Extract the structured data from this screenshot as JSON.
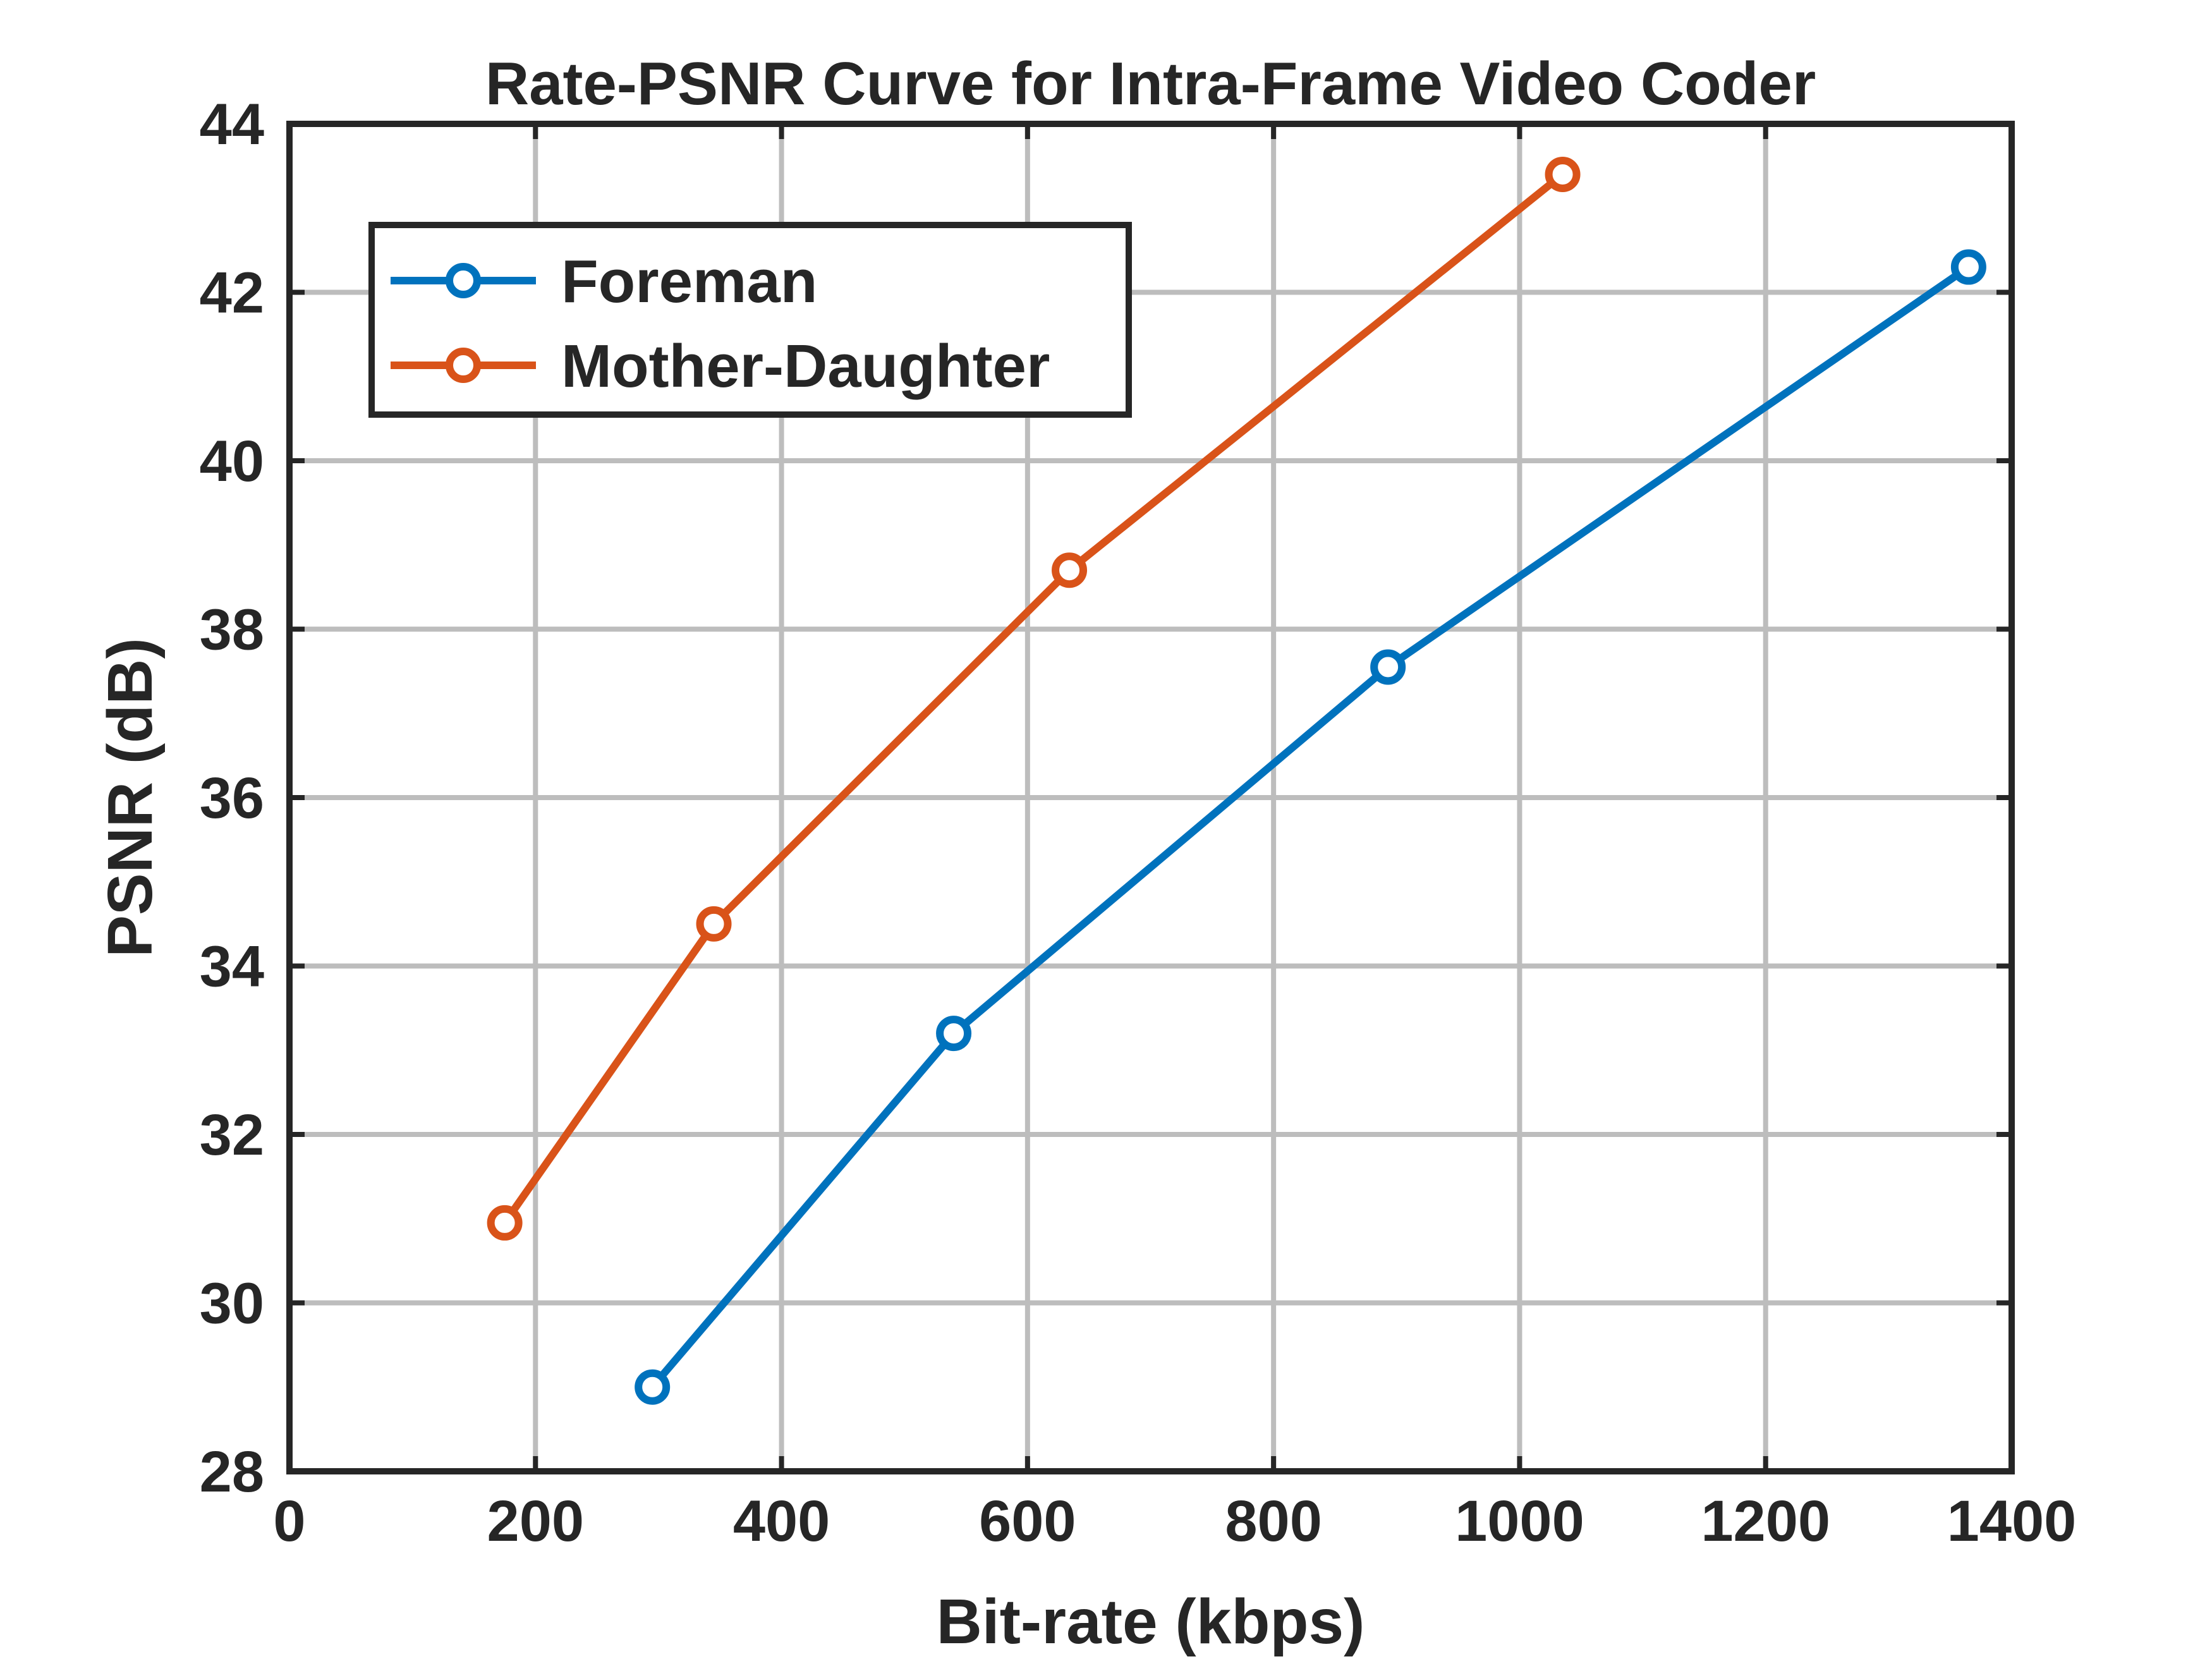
{
  "chart_data": {
    "type": "line",
    "title": "Rate-PSNR Curve for Intra-Frame Video Coder",
    "xlabel": "Bit-rate (kbps)",
    "ylabel": "PSNR (dB)",
    "xlim": [
      0,
      1400
    ],
    "ylim": [
      28,
      44
    ],
    "xticks": [
      0,
      200,
      400,
      600,
      800,
      1000,
      1200,
      1400
    ],
    "yticks": [
      28,
      30,
      32,
      34,
      36,
      38,
      40,
      42,
      44
    ],
    "grid": true,
    "legend_position": "top-left",
    "series": [
      {
        "name": "Foreman",
        "color": "#0072BD",
        "marker": "circle",
        "x": [
          295,
          540,
          893,
          1365
        ],
        "y": [
          29.0,
          33.2,
          37.55,
          42.3
        ]
      },
      {
        "name": "Mother-Daughter",
        "color": "#D95319",
        "marker": "circle",
        "x": [
          175,
          345,
          634,
          1035
        ],
        "y": [
          30.95,
          34.5,
          38.7,
          43.4
        ]
      }
    ]
  }
}
